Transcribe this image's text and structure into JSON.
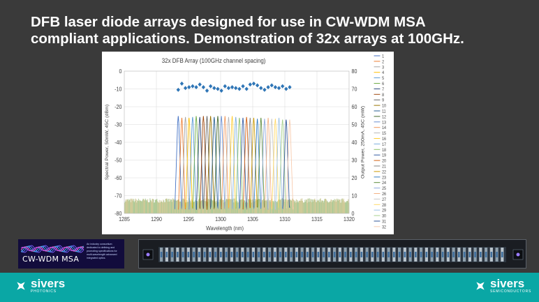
{
  "slide": {
    "title_line1": "DFB laser diode arrays designed for use in CW-WDM MSA",
    "title_line2": "compliant applications. Demonstration of 32x arrays at 100GHz."
  },
  "chart_data": {
    "type": "line",
    "title": "32x DFB Array (100GHz channel spacing)",
    "xlabel": "Wavelength (nm)",
    "ylabel": "Spectral Power, 50mW, 45C (dBm)",
    "y2label": "Output Power, 250mA, 45C (mW)",
    "xlim": [
      1285,
      1320
    ],
    "ylim": [
      -80,
      0
    ],
    "y2lim": [
      0,
      80
    ],
    "x_ticks": [
      "1285",
      "1290",
      "1295",
      "1300",
      "1305",
      "1310",
      "1315",
      "1320"
    ],
    "y_ticks": [
      "0",
      "-10",
      "-20",
      "-30",
      "-40",
      "-50",
      "-60",
      "-70",
      "-80"
    ],
    "y2_ticks": [
      "80",
      "70",
      "60",
      "50",
      "40",
      "30",
      "20",
      "10",
      "0"
    ],
    "grid": true,
    "legend_position": "right",
    "noise_floor_dbm": -75,
    "series": [
      {
        "name": "1",
        "peak_nm": 1293.4,
        "peak_dbm": -25.0,
        "color": "#4472c4"
      },
      {
        "name": "2",
        "peak_nm": 1293.96,
        "peak_dbm": -26.0,
        "color": "#ed7d31"
      },
      {
        "name": "3",
        "peak_nm": 1294.52,
        "peak_dbm": -25.5,
        "color": "#a5a5a5"
      },
      {
        "name": "4",
        "peak_nm": 1295.08,
        "peak_dbm": -26.0,
        "color": "#ffc000"
      },
      {
        "name": "5",
        "peak_nm": 1295.64,
        "peak_dbm": -25.5,
        "color": "#5b9bd5"
      },
      {
        "name": "6",
        "peak_nm": 1296.2,
        "peak_dbm": -25.0,
        "color": "#70ad47"
      },
      {
        "name": "7",
        "peak_nm": 1296.76,
        "peak_dbm": -25.5,
        "color": "#264478"
      },
      {
        "name": "8",
        "peak_nm": 1297.32,
        "peak_dbm": -25.0,
        "color": "#9e480e"
      },
      {
        "name": "9",
        "peak_nm": 1297.88,
        "peak_dbm": -25.0,
        "color": "#636363"
      },
      {
        "name": "10",
        "peak_nm": 1298.44,
        "peak_dbm": -25.0,
        "color": "#997300"
      },
      {
        "name": "11",
        "peak_nm": 1299.0,
        "peak_dbm": -25.5,
        "color": "#255e91"
      },
      {
        "name": "12",
        "peak_nm": 1299.56,
        "peak_dbm": -25.0,
        "color": "#43682b"
      },
      {
        "name": "13",
        "peak_nm": 1300.12,
        "peak_dbm": -25.0,
        "color": "#698ed0"
      },
      {
        "name": "14",
        "peak_nm": 1300.68,
        "peak_dbm": -25.0,
        "color": "#f1975a"
      },
      {
        "name": "15",
        "peak_nm": 1301.24,
        "peak_dbm": -25.5,
        "color": "#b7b7b7"
      },
      {
        "name": "16",
        "peak_nm": 1301.8,
        "peak_dbm": -25.0,
        "color": "#ffcd33"
      },
      {
        "name": "17",
        "peak_nm": 1302.36,
        "peak_dbm": -25.5,
        "color": "#7cafdd"
      },
      {
        "name": "18",
        "peak_nm": 1302.92,
        "peak_dbm": -26.0,
        "color": "#8cc168"
      },
      {
        "name": "19",
        "peak_nm": 1303.48,
        "peak_dbm": -26.0,
        "color": "#335aa1"
      },
      {
        "name": "20",
        "peak_nm": 1304.04,
        "peak_dbm": -25.5,
        "color": "#d26012"
      },
      {
        "name": "21",
        "peak_nm": 1304.6,
        "peak_dbm": -26.0,
        "color": "#848484"
      },
      {
        "name": "22",
        "peak_nm": 1305.16,
        "peak_dbm": -26.0,
        "color": "#cc9a00"
      },
      {
        "name": "23",
        "peak_nm": 1305.72,
        "peak_dbm": -26.5,
        "color": "#327dc2"
      },
      {
        "name": "24",
        "peak_nm": 1306.28,
        "peak_dbm": -26.0,
        "color": "#5a8a39"
      },
      {
        "name": "25",
        "peak_nm": 1306.84,
        "peak_dbm": -26.5,
        "color": "#8faadc"
      },
      {
        "name": "26",
        "peak_nm": 1307.4,
        "peak_dbm": -26.0,
        "color": "#f4b183"
      },
      {
        "name": "27",
        "peak_nm": 1307.96,
        "peak_dbm": -26.5,
        "color": "#c9c9c9"
      },
      {
        "name": "28",
        "peak_nm": 1308.52,
        "peak_dbm": -26.5,
        "color": "#ffd966"
      },
      {
        "name": "29",
        "peak_nm": 1309.08,
        "peak_dbm": -26.0,
        "color": "#9dc3e6"
      },
      {
        "name": "30",
        "peak_nm": 1309.64,
        "peak_dbm": -27.0,
        "color": "#a9d18e"
      },
      {
        "name": "31",
        "peak_nm": 1310.2,
        "peak_dbm": -27.0,
        "color": "#2f5597"
      },
      {
        "name": "32",
        "peak_nm": 1310.76,
        "peak_dbm": -27.0,
        "color": "#f8cbad"
      }
    ],
    "output_power_series": {
      "marker": "diamond",
      "color": "#2e75b6",
      "points": [
        [
          1293.4,
          69.5
        ],
        [
          1293.96,
          73.0
        ],
        [
          1294.52,
          70.5
        ],
        [
          1295.08,
          71.0
        ],
        [
          1295.64,
          71.5
        ],
        [
          1296.2,
          71.0
        ],
        [
          1296.76,
          72.5
        ],
        [
          1297.32,
          71.0
        ],
        [
          1297.88,
          69.0
        ],
        [
          1298.44,
          71.5
        ],
        [
          1299.0,
          70.5
        ],
        [
          1299.56,
          70.0
        ],
        [
          1300.12,
          69.0
        ],
        [
          1300.68,
          71.5
        ],
        [
          1301.24,
          70.5
        ],
        [
          1301.8,
          71.0
        ],
        [
          1302.36,
          70.5
        ],
        [
          1302.92,
          70.0
        ],
        [
          1303.48,
          71.5
        ],
        [
          1304.04,
          70.0
        ],
        [
          1304.6,
          72.5
        ],
        [
          1305.16,
          73.0
        ],
        [
          1305.72,
          72.0
        ],
        [
          1306.28,
          70.5
        ],
        [
          1306.84,
          69.5
        ],
        [
          1307.4,
          71.0
        ],
        [
          1307.96,
          72.0
        ],
        [
          1308.52,
          71.0
        ],
        [
          1309.08,
          70.5
        ],
        [
          1309.64,
          71.5
        ],
        [
          1310.2,
          70.0
        ],
        [
          1310.76,
          71.0
        ]
      ]
    }
  },
  "msa_logo": {
    "name": "CW-WDM MSA",
    "description": "An industry consortium dedicated to defining and promoting specifications for multi-wavelength advanced integrated optics."
  },
  "footer": {
    "brand_left": "sivers",
    "brand_left_sub": "PHOTONICS",
    "brand_right": "sivers",
    "brand_right_sub": "SEMICONDUCTORS",
    "accent_color": "#0aa7a5"
  }
}
